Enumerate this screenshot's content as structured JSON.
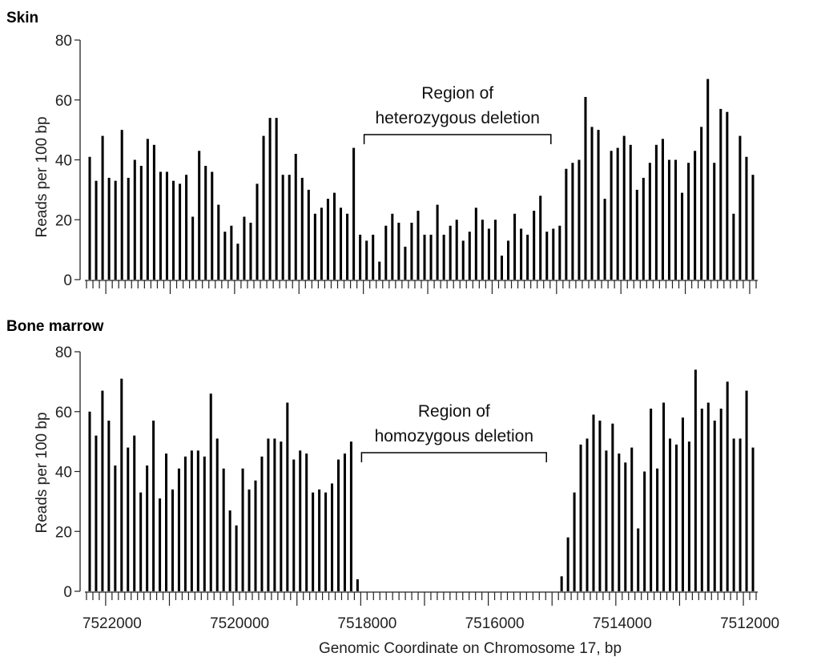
{
  "chart_data": [
    {
      "type": "bar",
      "title": "Skin",
      "ylabel": "Reads per 100 bp",
      "xlabel": "",
      "ylim": [
        0,
        80
      ],
      "yticks": [
        0,
        20,
        40,
        60,
        80
      ],
      "values": [
        41,
        33,
        48,
        34,
        33,
        50,
        34,
        40,
        38,
        47,
        45,
        36,
        36,
        33,
        32,
        35,
        21,
        43,
        38,
        36,
        25,
        16,
        18,
        12,
        21,
        19,
        32,
        48,
        54,
        54,
        35,
        35,
        42,
        34,
        30,
        22,
        24,
        27,
        29,
        24,
        22,
        44,
        15,
        13,
        15,
        6,
        18,
        22,
        19,
        11,
        19,
        23,
        15,
        15,
        25,
        15,
        18,
        20,
        13,
        16,
        24,
        20,
        17,
        20,
        8,
        13,
        22,
        17,
        15,
        23,
        28,
        16,
        17,
        18,
        37,
        39,
        40,
        61,
        51,
        50,
        27,
        43,
        44,
        48,
        45,
        30,
        34,
        39,
        45,
        47,
        40,
        40,
        29,
        39,
        43,
        51,
        67,
        39,
        57,
        56,
        22,
        48,
        41,
        35
      ],
      "annotation": {
        "line1": "Region of",
        "line2": "heterozygous deletion",
        "from_bar": 42,
        "to_bar": 72
      }
    },
    {
      "type": "bar",
      "title": "Bone marrow",
      "ylabel": "Reads per 100 bp",
      "xlabel": "Genomic Coordinate on Chromosome 17, bp",
      "ylim": [
        0,
        80
      ],
      "yticks": [
        0,
        20,
        40,
        60,
        80
      ],
      "xaxis": {
        "reversed": true,
        "tick_values": [
          7522000,
          7520000,
          7518000,
          7516000,
          7514000,
          7512000
        ],
        "tick_labels": [
          "7522000",
          "7520000",
          "7518000",
          "7516000",
          "7514000",
          "7512000"
        ]
      },
      "values": [
        60,
        52,
        67,
        57,
        42,
        71,
        48,
        52,
        33,
        42,
        57,
        31,
        46,
        34,
        41,
        45,
        47,
        47,
        45,
        66,
        51,
        41,
        27,
        22,
        41,
        34,
        37,
        45,
        51,
        51,
        50,
        63,
        44,
        47,
        46,
        33,
        34,
        33,
        36,
        44,
        46,
        50,
        4,
        0,
        0,
        0,
        0,
        0,
        0,
        0,
        0,
        0,
        0,
        0,
        0,
        0,
        0,
        0,
        0,
        0,
        0,
        0,
        0,
        0,
        0,
        0,
        0,
        0,
        0,
        0,
        0,
        0,
        0,
        0,
        5,
        18,
        33,
        49,
        51,
        59,
        57,
        47,
        56,
        46,
        43,
        48,
        21,
        40,
        61,
        41,
        63,
        51,
        49,
        58,
        50,
        74,
        61,
        63,
        57,
        61,
        70,
        51,
        51,
        67,
        48
      ],
      "annotation": {
        "line1": "Region of",
        "line2": "homozygous deletion",
        "from_bar": 42,
        "to_bar": 72
      }
    }
  ]
}
